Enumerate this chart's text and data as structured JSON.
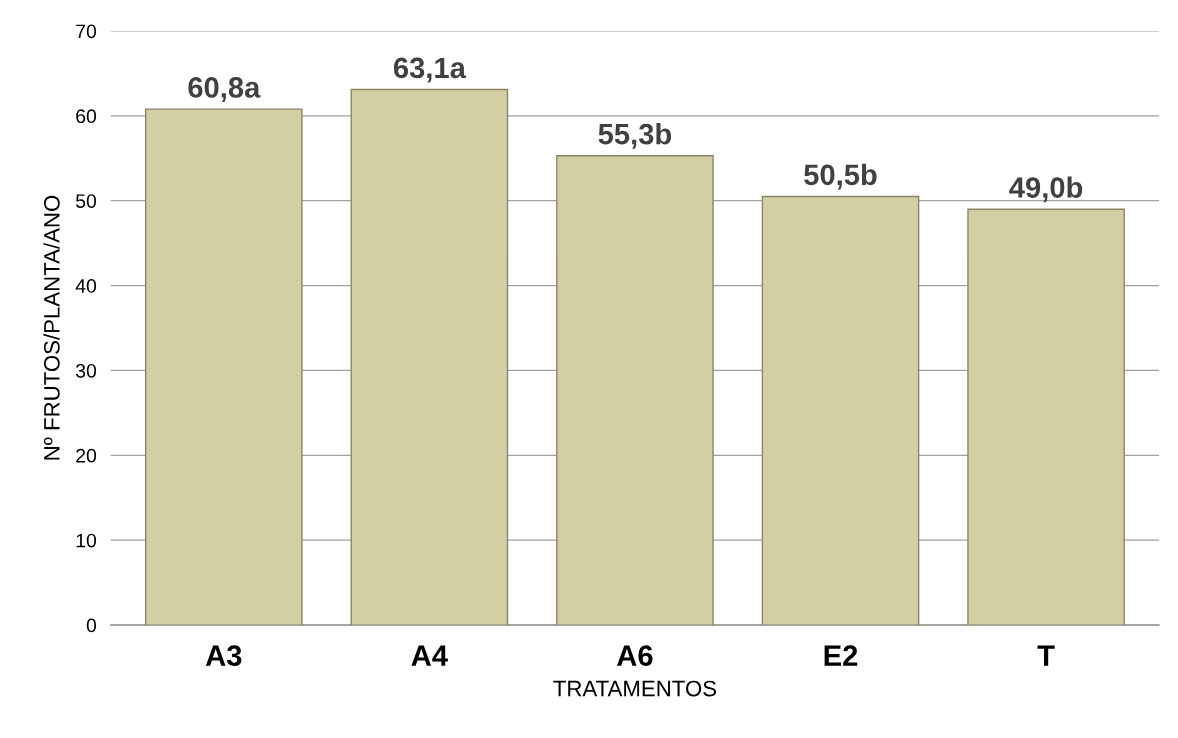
{
  "chart_data": {
    "type": "bar",
    "xlabel": "TRATAMENTOS",
    "ylabel": "Nº FRUTOS/PLANTA/ANO",
    "categories": [
      "A3",
      "A4",
      "A6",
      "E2",
      "T"
    ],
    "values": [
      60.8,
      63.1,
      55.3,
      50.5,
      49.0
    ],
    "value_labels": [
      "60,8a",
      "63,1a",
      "55,3b",
      "50,5b",
      "49,0b"
    ],
    "color": "#d4cea5",
    "ylim": [
      0,
      70
    ],
    "yticks": [
      0,
      10,
      20,
      30,
      40,
      50,
      60,
      70
    ],
    "grid": "y"
  }
}
